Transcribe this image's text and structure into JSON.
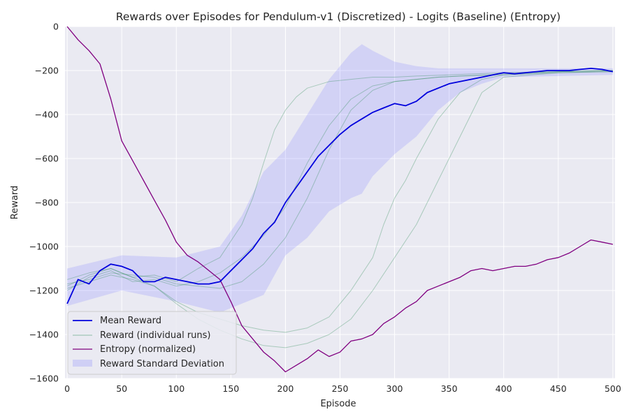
{
  "chart_data": {
    "type": "line",
    "title": "Rewards over Episodes for Pendulum-v1 (Discretized) - Logits (Baseline) (Entropy)",
    "xlabel": "Episode",
    "ylabel": "Reward",
    "xlim": [
      -2,
      502
    ],
    "ylim": [
      -1600,
      0
    ],
    "xticks": [
      0,
      50,
      100,
      150,
      200,
      250,
      300,
      350,
      400,
      450,
      500
    ],
    "yticks": [
      -1600,
      -1400,
      -1200,
      -1000,
      -800,
      -600,
      -400,
      -200,
      0
    ],
    "xtick_labels": [
      "0",
      "50",
      "100",
      "150",
      "200",
      "250",
      "300",
      "350",
      "400",
      "450",
      "500"
    ],
    "ytick_labels": [
      "−1600",
      "−1400",
      "−1200",
      "−1000",
      "−800",
      "−600",
      "−400",
      "−200",
      "0"
    ],
    "grid": true,
    "legend_position": "lower-left",
    "colors": {
      "mean": "#0000dd",
      "runs": "#2e8b57",
      "entropy": "#800080",
      "std": "#8080ff",
      "plot_bg": "#eaeaf2",
      "grid": "#ffffff"
    },
    "legend": [
      {
        "label": "Mean Reward",
        "kind": "line",
        "color": "#0000dd"
      },
      {
        "label": "Reward (individual runs)",
        "kind": "thin-line",
        "color": "#2e8b57"
      },
      {
        "label": "Entropy (normalized)",
        "kind": "line",
        "color": "#800080"
      },
      {
        "label": "Reward Standard Deviation",
        "kind": "patch",
        "color": "#8080ff"
      }
    ],
    "series": [
      {
        "name": "Mean Reward",
        "x": [
          0,
          10,
          20,
          30,
          40,
          50,
          60,
          70,
          80,
          90,
          100,
          110,
          120,
          130,
          140,
          150,
          160,
          170,
          180,
          190,
          200,
          210,
          220,
          230,
          240,
          250,
          260,
          270,
          280,
          290,
          300,
          310,
          320,
          330,
          340,
          350,
          360,
          370,
          380,
          390,
          400,
          410,
          420,
          430,
          440,
          450,
          460,
          470,
          480,
          490,
          500
        ],
        "y": [
          -1260,
          -1150,
          -1170,
          -1110,
          -1080,
          -1090,
          -1110,
          -1160,
          -1160,
          -1140,
          -1150,
          -1160,
          -1170,
          -1170,
          -1160,
          -1110,
          -1060,
          -1010,
          -940,
          -890,
          -800,
          -730,
          -660,
          -590,
          -540,
          -490,
          -450,
          -420,
          -390,
          -370,
          -350,
          -360,
          -340,
          -300,
          -280,
          -260,
          -250,
          -240,
          -230,
          -220,
          -210,
          -215,
          -210,
          -205,
          -200,
          -200,
          -200,
          -195,
          -190,
          -195,
          -205
        ]
      },
      {
        "name": "Reward Standard Deviation (upper)",
        "x": [
          0,
          50,
          100,
          140,
          160,
          180,
          200,
          220,
          240,
          260,
          270,
          280,
          300,
          320,
          340,
          360,
          380,
          400,
          500
        ],
        "y": [
          -1100,
          -1040,
          -1050,
          -1000,
          -860,
          -660,
          -560,
          -400,
          -240,
          -120,
          -80,
          -110,
          -160,
          -180,
          -190,
          -190,
          -190,
          -190,
          -190
        ]
      },
      {
        "name": "Reward Standard Deviation (lower)",
        "x": [
          0,
          50,
          100,
          140,
          160,
          180,
          200,
          220,
          240,
          260,
          270,
          280,
          300,
          320,
          340,
          360,
          380,
          400,
          500
        ],
        "y": [
          -1270,
          -1200,
          -1250,
          -1300,
          -1260,
          -1220,
          -1040,
          -960,
          -840,
          -780,
          -760,
          -680,
          -580,
          -500,
          -380,
          -300,
          -260,
          -230,
          -220
        ]
      },
      {
        "name": "Entropy (normalized)",
        "x": [
          0,
          10,
          20,
          30,
          40,
          50,
          60,
          70,
          80,
          90,
          100,
          110,
          120,
          130,
          140,
          150,
          160,
          170,
          180,
          190,
          200,
          210,
          220,
          230,
          240,
          250,
          260,
          270,
          280,
          290,
          300,
          310,
          320,
          330,
          340,
          350,
          360,
          370,
          380,
          390,
          400,
          410,
          420,
          430,
          440,
          450,
          460,
          470,
          480,
          490,
          500
        ],
        "y": [
          0,
          -60,
          -110,
          -170,
          -330,
          -520,
          -610,
          -700,
          -790,
          -880,
          -980,
          -1040,
          -1070,
          -1110,
          -1150,
          -1250,
          -1360,
          -1420,
          -1480,
          -1520,
          -1570,
          -1540,
          -1510,
          -1470,
          -1500,
          -1480,
          -1430,
          -1420,
          -1400,
          -1350,
          -1320,
          -1280,
          -1250,
          -1200,
          -1180,
          -1160,
          -1140,
          -1110,
          -1100,
          -1110,
          -1100,
          -1090,
          -1090,
          -1080,
          -1060,
          -1050,
          -1030,
          -1000,
          -970,
          -980,
          -990
        ]
      },
      {
        "name": "Reward (run 1)",
        "x": [
          0,
          20,
          40,
          60,
          80,
          100,
          120,
          140,
          160,
          170,
          180,
          190,
          200,
          210,
          220,
          240,
          260,
          280,
          300,
          320,
          350,
          400,
          450,
          500
        ],
        "y": [
          -1150,
          -1120,
          -1100,
          -1140,
          -1130,
          -1160,
          -1100,
          -1050,
          -900,
          -780,
          -620,
          -470,
          -380,
          -320,
          -280,
          -250,
          -240,
          -230,
          -230,
          -225,
          -220,
          -210,
          -205,
          -200
        ]
      },
      {
        "name": "Reward (run 2)",
        "x": [
          0,
          20,
          40,
          60,
          80,
          100,
          120,
          140,
          160,
          180,
          200,
          220,
          240,
          260,
          280,
          300,
          320,
          340,
          360,
          400,
          450,
          500
        ],
        "y": [
          -1200,
          -1140,
          -1110,
          -1160,
          -1150,
          -1180,
          -1160,
          -1120,
          -1050,
          -950,
          -820,
          -620,
          -450,
          -330,
          -270,
          -250,
          -240,
          -230,
          -225,
          -215,
          -205,
          -200
        ]
      },
      {
        "name": "Reward (run 3)",
        "x": [
          0,
          20,
          40,
          60,
          80,
          100,
          120,
          140,
          160,
          180,
          200,
          220,
          240,
          260,
          280,
          300,
          320,
          340,
          360,
          400,
          450,
          500
        ],
        "y": [
          -1170,
          -1150,
          -1120,
          -1130,
          -1140,
          -1170,
          -1180,
          -1190,
          -1160,
          -1080,
          -960,
          -780,
          -560,
          -380,
          -290,
          -250,
          -240,
          -230,
          -225,
          -220,
          -210,
          -205
        ]
      },
      {
        "name": "Reward (run 4)",
        "x": [
          0,
          20,
          40,
          60,
          80,
          100,
          120,
          140,
          160,
          180,
          200,
          220,
          240,
          260,
          280,
          290,
          300,
          310,
          320,
          340,
          360,
          380,
          400,
          450,
          500
        ],
        "y": [
          -1180,
          -1130,
          -1100,
          -1140,
          -1180,
          -1250,
          -1300,
          -1330,
          -1360,
          -1380,
          -1390,
          -1370,
          -1320,
          -1200,
          -1050,
          -900,
          -780,
          -700,
          -600,
          -420,
          -300,
          -240,
          -220,
          -205,
          -200
        ]
      },
      {
        "name": "Reward (run 5)",
        "x": [
          0,
          20,
          40,
          60,
          80,
          100,
          120,
          140,
          160,
          180,
          200,
          220,
          240,
          260,
          280,
          300,
          320,
          340,
          360,
          370,
          380,
          400,
          450,
          500
        ],
        "y": [
          -1190,
          -1160,
          -1130,
          -1150,
          -1180,
          -1260,
          -1330,
          -1380,
          -1420,
          -1450,
          -1460,
          -1440,
          -1400,
          -1330,
          -1200,
          -1050,
          -900,
          -700,
          -500,
          -400,
          -300,
          -230,
          -210,
          -205
        ]
      }
    ]
  }
}
